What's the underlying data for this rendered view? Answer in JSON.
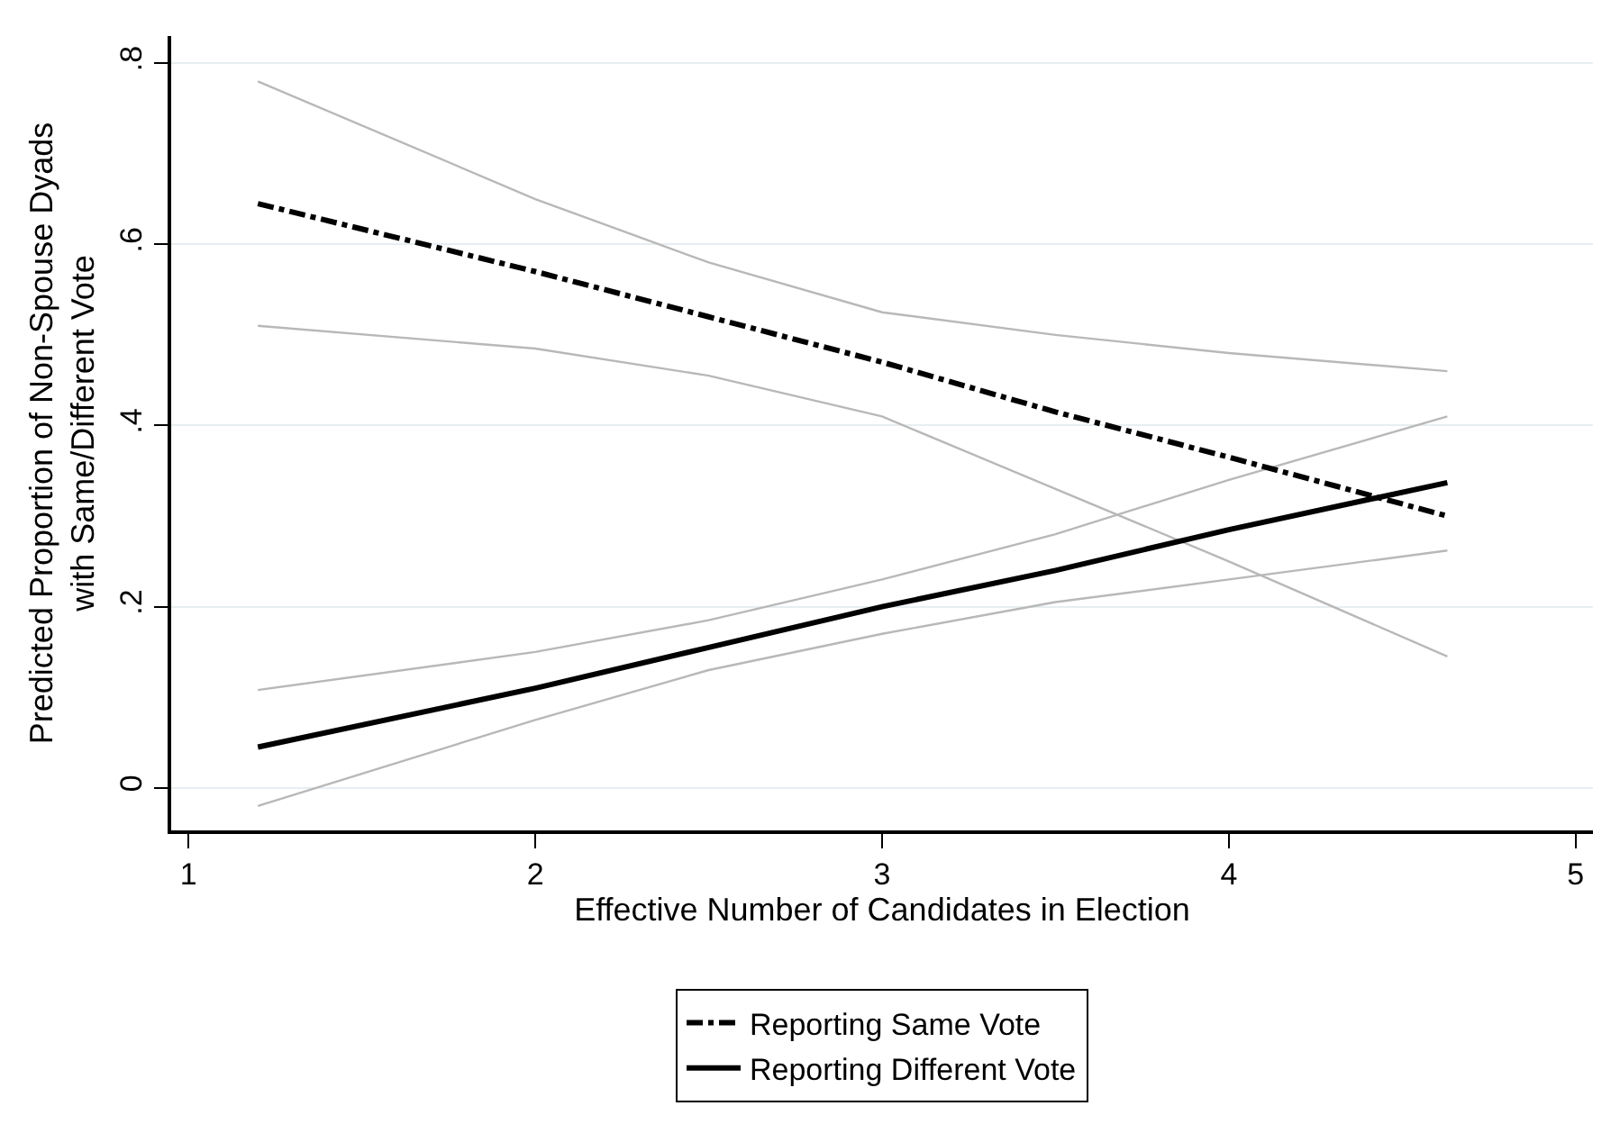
{
  "chart_data": {
    "type": "line",
    "xlabel": "Effective Number of Candidates in Election",
    "ylabel": "Predicted Proportion of Non-Spouse Dyads\nwith Same/Different Vote",
    "x": [
      1.2,
      2,
      2.5,
      3,
      3.5,
      4,
      4.63
    ],
    "series": [
      {
        "color": "#b8b8b8",
        "line_style": "solid",
        "values": [
          0.78,
          0.65,
          0.58,
          0.525,
          0.5,
          0.48,
          0.46
        ]
      },
      {
        "color": "#b8b8b8",
        "line_style": "solid",
        "values": [
          0.51,
          0.485,
          0.455,
          0.41,
          0.33,
          0.25,
          0.145
        ]
      },
      {
        "color": "#b8b8b8",
        "line_style": "solid",
        "values": [
          0.108,
          0.15,
          0.185,
          0.23,
          0.28,
          0.34,
          0.41
        ]
      },
      {
        "color": "#b8b8b8",
        "line_style": "solid",
        "values": [
          -0.02,
          0.075,
          0.13,
          0.17,
          0.205,
          0.23,
          0.262
        ]
      },
      {
        "name": "Reporting Same Vote",
        "color": "#000000",
        "line_style": "dashed",
        "values": [
          0.645,
          0.57,
          0.52,
          0.47,
          0.415,
          0.365,
          0.3
        ]
      },
      {
        "name": "Reporting Different Vote",
        "color": "#000000",
        "line_style": "solid",
        "values": [
          0.045,
          0.11,
          0.155,
          0.2,
          0.24,
          0.285,
          0.337
        ]
      }
    ],
    "xlim": [
      0.95,
      5.05
    ],
    "ylim": [
      -0.047,
      0.83
    ],
    "xticks": [
      1,
      2,
      3,
      4,
      5
    ],
    "yticks": [
      {
        "value": 0,
        "label": "0"
      },
      {
        "value": 0.2,
        "label": ".2"
      },
      {
        "value": 0.4,
        "label": ".4"
      },
      {
        "value": 0.6,
        "label": ".6"
      },
      {
        "value": 0.8,
        "label": ".8"
      }
    ],
    "grid": "y",
    "legend": "bottom",
    "marker": "none"
  }
}
